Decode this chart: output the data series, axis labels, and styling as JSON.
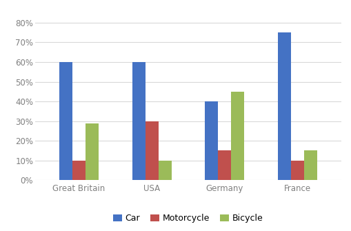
{
  "categories": [
    "Great Britain",
    "USA",
    "Germany",
    "France"
  ],
  "series": {
    "Car": [
      0.6,
      0.6,
      0.4,
      0.75
    ],
    "Motorcycle": [
      0.1,
      0.3,
      0.15,
      0.1
    ],
    "Bicycle": [
      0.29,
      0.1,
      0.45,
      0.15
    ]
  },
  "colors": {
    "Car": "#4472C4",
    "Motorcycle": "#C0504D",
    "Bicycle": "#9BBB59"
  },
  "ylim": [
    0,
    0.88
  ],
  "yticks": [
    0.0,
    0.1,
    0.2,
    0.3,
    0.4,
    0.5,
    0.6,
    0.7,
    0.8
  ],
  "legend_labels": [
    "Car",
    "Motorcycle",
    "Bicycle"
  ],
  "bar_width": 0.18,
  "grid_color": "#D9D9D9",
  "background_color": "#FFFFFF",
  "tick_label_color": "#808080",
  "tick_fontsize": 8.5
}
